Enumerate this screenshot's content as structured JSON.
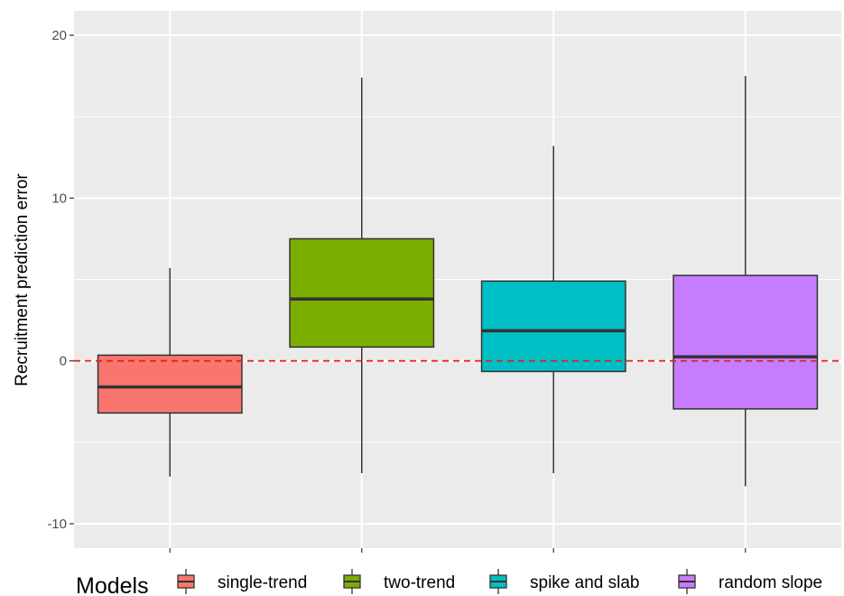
{
  "chart_data": {
    "type": "boxplot",
    "ylabel": "Recruitment prediction error",
    "xlabel": "",
    "ylim": [
      -11.5,
      21.5
    ],
    "yticks": [
      -10,
      0,
      10,
      20
    ],
    "ytick_labels": [
      "-10",
      "0",
      "10",
      "20"
    ],
    "grid": true,
    "reference_line": {
      "y": 0,
      "style": "dashed",
      "color": "#e41a1c"
    },
    "legend": {
      "title": "Models",
      "position": "bottom"
    },
    "series": [
      {
        "name": "single-trend",
        "color": "#f8766d",
        "whisker_low": -7.1,
        "q1": -3.2,
        "median": -1.6,
        "q3": 0.35,
        "whisker_high": 5.7
      },
      {
        "name": "two-trend",
        "color": "#7cae00",
        "whisker_low": -6.9,
        "q1": 0.85,
        "median": 3.8,
        "q3": 7.5,
        "whisker_high": 17.4
      },
      {
        "name": "spike and slab",
        "color": "#00bfc4",
        "whisker_low": -6.9,
        "q1": -0.65,
        "median": 1.85,
        "q3": 4.9,
        "whisker_high": 13.2
      },
      {
        "name": "random slope",
        "color": "#c77cff",
        "whisker_low": -7.7,
        "q1": -2.95,
        "median": 0.25,
        "q3": 5.25,
        "whisker_high": 17.5
      }
    ]
  }
}
